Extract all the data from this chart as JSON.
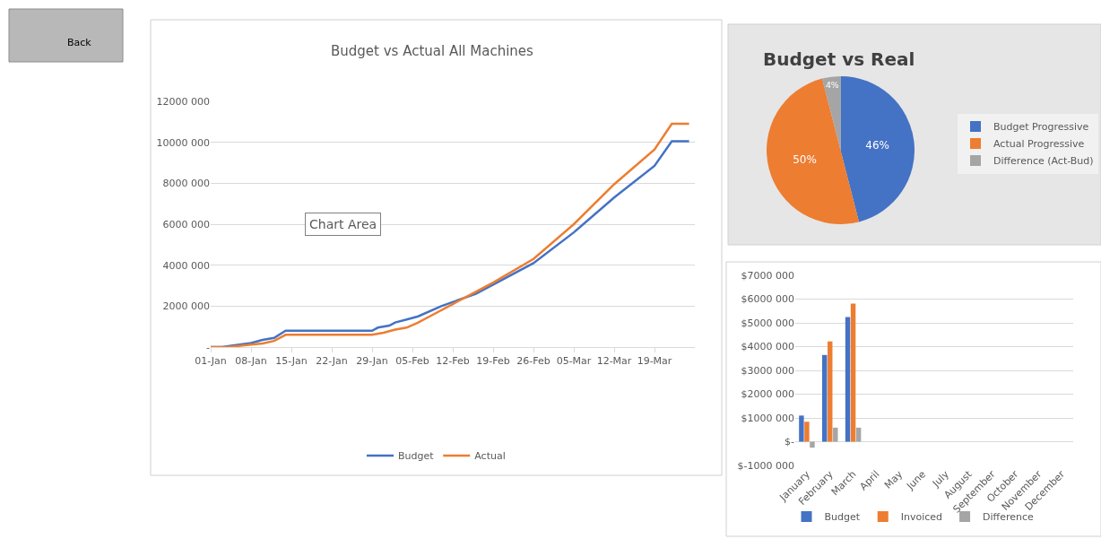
{
  "chart_data": [
    {
      "type": "line",
      "title": "Budget vs Actual All Machines",
      "annotations": [
        "Back",
        "Chart Area"
      ],
      "series": [
        {
          "name": "Budget",
          "color": "#4472c4",
          "x": [
            "--01-01",
            "--01-03",
            "--01-08",
            "--01-10",
            "--01-12",
            "--01-14",
            "--01-29",
            "--01-30",
            "--02-01",
            "--02-02",
            "--02-04",
            "--02-06",
            "--02-10",
            "--02-16",
            "--02-19",
            "--02-26",
            "--03-05",
            "--03-12",
            "--03-19",
            "--03-22",
            "--03-25"
          ],
          "values": [
            0,
            0,
            200000,
            350000,
            450000,
            800000,
            800000,
            950000,
            1050000,
            1200000,
            1350000,
            1500000,
            2000000,
            2600000,
            3050000,
            4100000,
            5600000,
            7300000,
            8850000,
            10050000,
            10050000
          ]
        },
        {
          "name": "Actual",
          "color": "#ed7d31",
          "x": [
            "--01-01",
            "--01-04",
            "--01-08",
            "--01-10",
            "--01-12",
            "--01-14",
            "--01-29",
            "--01-31",
            "--02-02",
            "--02-04",
            "--02-06",
            "--02-08",
            "--02-12",
            "--02-16",
            "--02-19",
            "--02-26",
            "--03-05",
            "--03-12",
            "--03-19",
            "--03-22",
            "--03-25"
          ],
          "values": [
            0,
            0,
            120000,
            180000,
            300000,
            600000,
            600000,
            700000,
            850000,
            950000,
            1200000,
            1500000,
            2100000,
            2700000,
            3150000,
            4300000,
            6000000,
            7950000,
            9650000,
            10900000,
            10900000
          ]
        }
      ],
      "xlim": [
        "--01-01",
        "--03-26"
      ],
      "xticks": [
        {
          "value": "--01-01",
          "label": "01-Jan"
        },
        {
          "value": "--01-08",
          "label": "08-Jan"
        },
        {
          "value": "--01-15",
          "label": "15-Jan"
        },
        {
          "value": "--01-22",
          "label": "22-Jan"
        },
        {
          "value": "--01-29",
          "label": "29-Jan"
        },
        {
          "value": "--02-05",
          "label": "05-Feb"
        },
        {
          "value": "--02-12",
          "label": "12-Feb"
        },
        {
          "value": "--02-19",
          "label": "19-Feb"
        },
        {
          "value": "--02-26",
          "label": "26-Feb"
        },
        {
          "value": "--03-05",
          "label": "05-Mar"
        },
        {
          "value": "--03-12",
          "label": "12-Mar"
        },
        {
          "value": "--03-19",
          "label": "19-Mar"
        }
      ],
      "ylim": [
        0,
        12000000
      ],
      "yticks": [
        {
          "value": 0,
          "label": "-"
        },
        {
          "value": 2000000,
          "label": "2000 000"
        },
        {
          "value": 4000000,
          "label": "4000 000"
        },
        {
          "value": 6000000,
          "label": "6000 000"
        },
        {
          "value": 8000000,
          "label": "8000 000"
        },
        {
          "value": 10000000,
          "label": "10000 000"
        },
        {
          "value": 12000000,
          "label": "12000 000"
        }
      ],
      "grid": "y",
      "legend": "bottom"
    },
    {
      "type": "pie",
      "title": "Budget vs Real",
      "categories": [
        "Budget Progressive",
        "Actual Progressive",
        "Difference (Act-Bud)"
      ],
      "values": [
        46,
        50,
        4
      ],
      "value_labels": [
        "46%",
        "50%",
        "4%"
      ],
      "colors": [
        "#4472c4",
        "#ed7d31",
        "#a5a5a5"
      ],
      "legend": "right"
    },
    {
      "type": "bar",
      "categories": [
        "January",
        "February",
        "March",
        "April",
        "May",
        "June",
        "July",
        "August",
        "September",
        "October",
        "November",
        "December"
      ],
      "series": [
        {
          "name": "Budget",
          "color": "#4472c4",
          "values": [
            1100000,
            3650000,
            5250000,
            null,
            null,
            null,
            null,
            null,
            null,
            null,
            null,
            null
          ]
        },
        {
          "name": "Invoiced",
          "color": "#ed7d31",
          "values": [
            840000,
            4220000,
            5810000,
            null,
            null,
            null,
            null,
            null,
            null,
            null,
            null,
            null
          ]
        },
        {
          "name": "Difference",
          "color": "#a5a5a5",
          "values": [
            -250000,
            590000,
            590000,
            null,
            null,
            null,
            null,
            null,
            null,
            null,
            null,
            null
          ]
        }
      ],
      "ylim": [
        -1000000,
        7000000
      ],
      "yticks": [
        {
          "value": -1000000,
          "label": "$-1000 000"
        },
        {
          "value": 0,
          "label": "$-"
        },
        {
          "value": 1000000,
          "label": "$1000 000"
        },
        {
          "value": 2000000,
          "label": "$2000 000"
        },
        {
          "value": 3000000,
          "label": "$3000 000"
        },
        {
          "value": 4000000,
          "label": "$4000 000"
        },
        {
          "value": 5000000,
          "label": "$5000 000"
        },
        {
          "value": 6000000,
          "label": "$6000 000"
        },
        {
          "value": 7000000,
          "label": "$7000 000"
        }
      ],
      "grid": "y",
      "legend": "bottom"
    }
  ]
}
